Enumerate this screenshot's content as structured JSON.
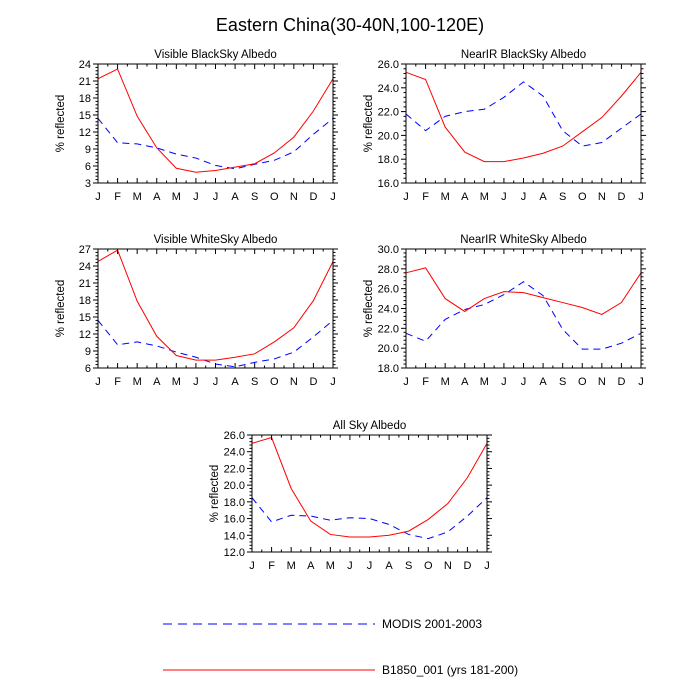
{
  "figure": {
    "title": "Eastern China(30-40N,100-120E)"
  },
  "colors": {
    "modis": "#0000ff",
    "model": "#ff0000"
  },
  "legend": [
    {
      "name": "MODIS 2001-2003",
      "style": "dashed",
      "color": "#0000ff"
    },
    {
      "name": "B1850_001 (yrs 181-200)",
      "style": "solid",
      "color": "#ff0000"
    }
  ],
  "chart_data": [
    {
      "type": "line",
      "title": "Visible BlackSky Albedo",
      "ylabel": "% reflected",
      "categories": [
        "J",
        "F",
        "M",
        "A",
        "M",
        "J",
        "J",
        "A",
        "S",
        "O",
        "N",
        "D",
        "J"
      ],
      "ylim": [
        3,
        24
      ],
      "yticks": [
        3,
        6,
        9,
        12,
        15,
        18,
        21,
        24
      ],
      "ytick_labels": [
        "3",
        "6",
        "9",
        "12",
        "15",
        "18",
        "21",
        "24"
      ],
      "series": [
        {
          "name": "MODIS 2001-2003",
          "values": [
            14.4,
            10.1,
            9.9,
            9.2,
            8.1,
            7.4,
            6.1,
            5.5,
            6.3,
            7.0,
            8.5,
            11.6,
            14.4
          ]
        },
        {
          "name": "B1850_001 (yrs 181-200)",
          "values": [
            21.4,
            23.1,
            14.8,
            9.2,
            5.6,
            4.9,
            5.2,
            5.8,
            6.4,
            8.3,
            11.1,
            15.7,
            21.4
          ]
        }
      ]
    },
    {
      "type": "line",
      "title": "NearIR BlackSky Albedo",
      "ylabel": "% reflected",
      "categories": [
        "J",
        "F",
        "M",
        "A",
        "M",
        "J",
        "J",
        "A",
        "S",
        "O",
        "N",
        "D",
        "J"
      ],
      "ylim": [
        16,
        26
      ],
      "yticks": [
        16,
        18,
        20,
        22,
        24,
        26
      ],
      "ytick_labels": [
        "16.0",
        "18.0",
        "20.0",
        "22.0",
        "24.0",
        "26.0"
      ],
      "series": [
        {
          "name": "MODIS 2001-2003",
          "values": [
            21.8,
            20.4,
            21.6,
            22.0,
            22.2,
            23.2,
            24.5,
            23.3,
            20.4,
            19.1,
            19.4,
            20.6,
            21.8
          ]
        },
        {
          "name": "B1850_001 (yrs 181-200)",
          "values": [
            25.3,
            24.7,
            20.7,
            18.6,
            17.8,
            17.8,
            18.1,
            18.5,
            19.1,
            20.3,
            21.5,
            23.3,
            25.3
          ]
        }
      ]
    },
    {
      "type": "line",
      "title": "Visible WhiteSky Albedo",
      "ylabel": "% reflected",
      "categories": [
        "J",
        "F",
        "M",
        "A",
        "M",
        "J",
        "J",
        "A",
        "S",
        "O",
        "N",
        "D",
        "J"
      ],
      "ylim": [
        6,
        27
      ],
      "yticks": [
        6,
        9,
        12,
        15,
        18,
        21,
        24,
        27
      ],
      "ytick_labels": [
        "6",
        "9",
        "12",
        "15",
        "18",
        "21",
        "24",
        "27"
      ],
      "series": [
        {
          "name": "MODIS 2001-2003",
          "values": [
            14.4,
            10.1,
            10.6,
            9.9,
            8.8,
            7.9,
            6.7,
            6.2,
            7.0,
            7.6,
            8.8,
            11.5,
            14.4
          ]
        },
        {
          "name": "B1850_001 (yrs 181-200)",
          "values": [
            24.8,
            26.8,
            17.8,
            11.6,
            8.2,
            7.4,
            7.4,
            7.9,
            8.5,
            10.6,
            13.1,
            17.9,
            24.8
          ]
        }
      ]
    },
    {
      "type": "line",
      "title": "NearIR WhiteSky Albedo",
      "ylabel": "% reflected",
      "categories": [
        "J",
        "F",
        "M",
        "A",
        "M",
        "J",
        "J",
        "A",
        "S",
        "O",
        "N",
        "D",
        "J"
      ],
      "ylim": [
        18,
        30
      ],
      "yticks": [
        18,
        20,
        22,
        24,
        26,
        28,
        30
      ],
      "ytick_labels": [
        "18.0",
        "20.0",
        "22.0",
        "24.0",
        "26.0",
        "28.0",
        "30.0"
      ],
      "series": [
        {
          "name": "MODIS 2001-2003",
          "values": [
            21.5,
            20.7,
            22.9,
            23.9,
            24.4,
            25.4,
            26.7,
            25.3,
            21.9,
            19.9,
            19.9,
            20.5,
            21.5
          ]
        },
        {
          "name": "B1850_001 (yrs 181-200)",
          "values": [
            27.6,
            28.1,
            25.0,
            23.7,
            25.0,
            25.7,
            25.6,
            25.1,
            24.6,
            24.1,
            23.4,
            24.6,
            27.6
          ]
        }
      ]
    },
    {
      "type": "line",
      "title": "All Sky Albedo",
      "ylabel": "% reflected",
      "categories": [
        "J",
        "F",
        "M",
        "A",
        "M",
        "J",
        "J",
        "A",
        "S",
        "O",
        "N",
        "D",
        "J"
      ],
      "ylim": [
        12,
        26
      ],
      "yticks": [
        12,
        14,
        16,
        18,
        20,
        22,
        24,
        26
      ],
      "ytick_labels": [
        "12.0",
        "14.0",
        "16.0",
        "18.0",
        "20.0",
        "22.0",
        "24.0",
        "26.0"
      ],
      "series": [
        {
          "name": "MODIS 2001-2003",
          "values": [
            18.5,
            15.6,
            16.4,
            16.3,
            15.8,
            16.1,
            16.0,
            15.3,
            14.1,
            13.6,
            14.4,
            16.3,
            18.5
          ]
        },
        {
          "name": "B1850_001 (yrs 181-200)",
          "values": [
            25.0,
            25.7,
            19.6,
            15.7,
            14.1,
            13.8,
            13.8,
            14.0,
            14.5,
            15.9,
            17.8,
            20.9,
            25.0
          ]
        }
      ]
    }
  ]
}
